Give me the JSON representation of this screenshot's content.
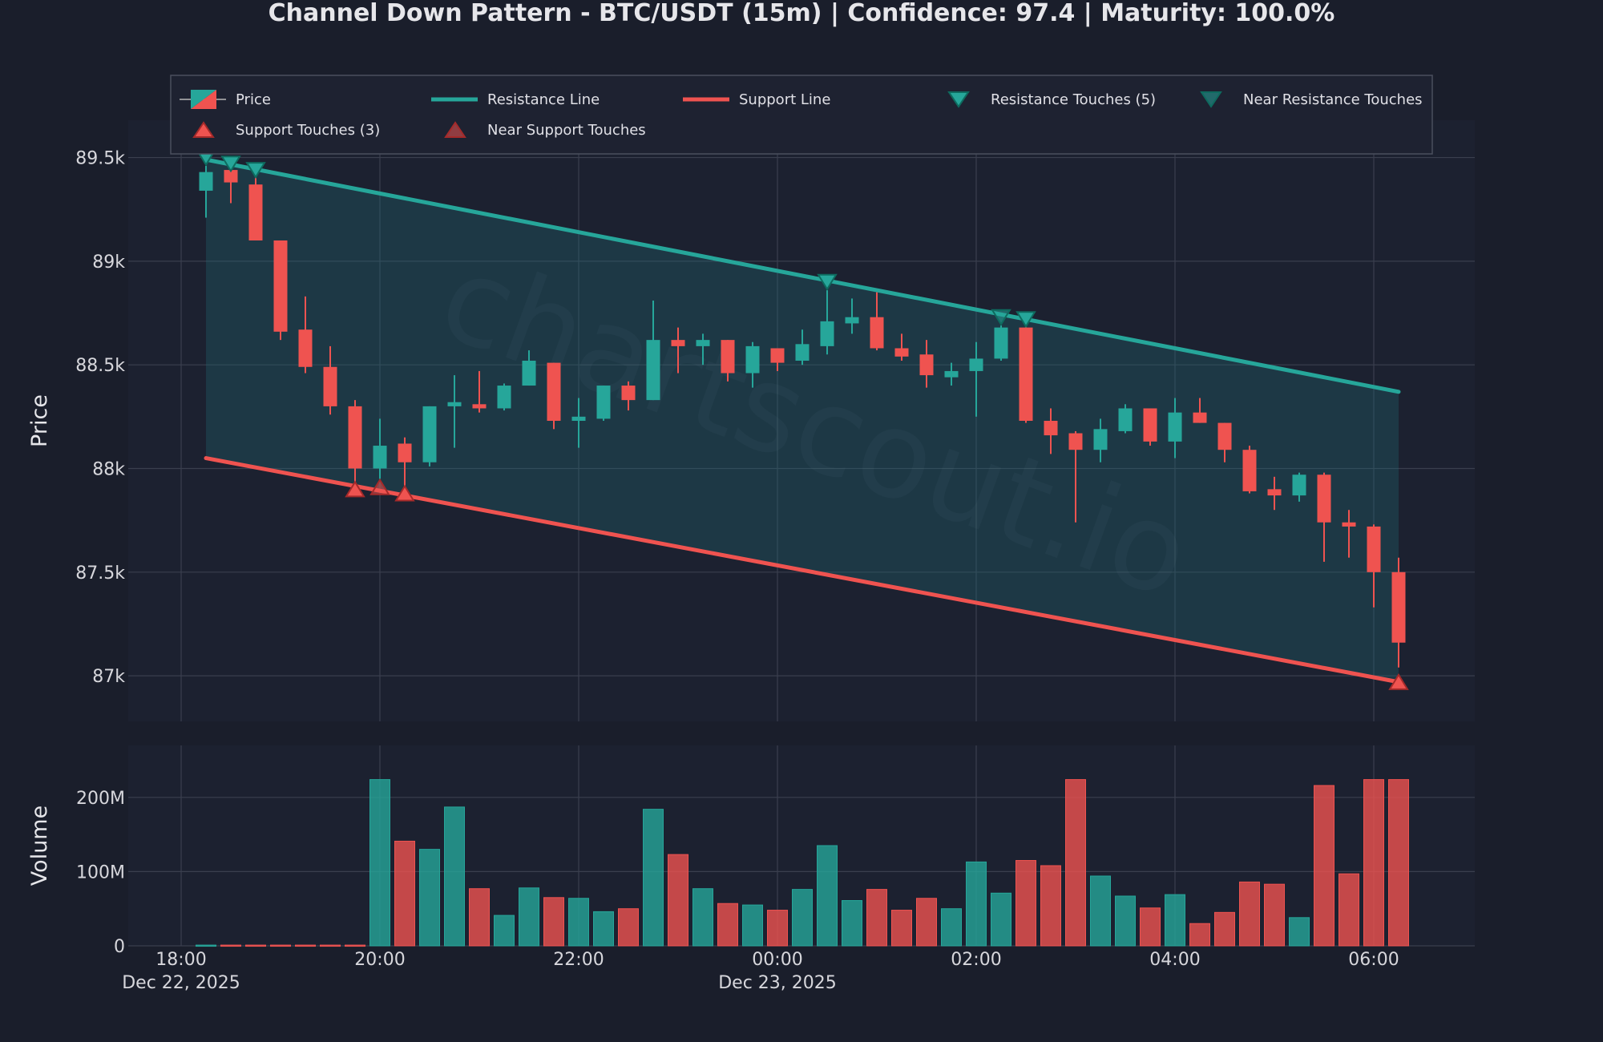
{
  "chart_data": {
    "type": "candlestick",
    "title": "Channel Down Pattern - BTC/USDT (15m) | Confidence: 97.4 | Maturity: 100.0%",
    "watermark": "chartscout.io",
    "price_axis": {
      "label": "Price",
      "ylim": [
        86780,
        89680
      ],
      "ticks": [
        {
          "value": 87000,
          "label": "87k"
        },
        {
          "value": 87500,
          "label": "87.5k"
        },
        {
          "value": 88000,
          "label": "88k"
        },
        {
          "value": 88500,
          "label": "88.5k"
        },
        {
          "value": 89000,
          "label": "89k"
        },
        {
          "value": 89500,
          "label": "89.5k"
        }
      ]
    },
    "volume_axis": {
      "label": "Volume",
      "ylim": [
        0,
        270000000
      ],
      "ticks": [
        {
          "value": 0,
          "label": "0"
        },
        {
          "value": 100000000,
          "label": "100M"
        },
        {
          "value": 200000000,
          "label": "200M"
        }
      ]
    },
    "x_axis": {
      "ticks": [
        {
          "slot": -1,
          "label": "18:00",
          "sublabel": "Dec 22, 2025"
        },
        {
          "slot": 7,
          "label": "20:00",
          "sublabel": ""
        },
        {
          "slot": 15,
          "label": "22:00",
          "sublabel": ""
        },
        {
          "slot": 23,
          "label": "00:00",
          "sublabel": "Dec 23, 2025"
        },
        {
          "slot": 31,
          "label": "02:00",
          "sublabel": ""
        },
        {
          "slot": 39,
          "label": "04:00",
          "sublabel": ""
        },
        {
          "slot": 47,
          "label": "06:00",
          "sublabel": ""
        }
      ]
    },
    "legend": {
      "placement": "top",
      "items": [
        {
          "label": "Price",
          "kind": "price"
        },
        {
          "label": "Resistance Line",
          "kind": "resistance_line"
        },
        {
          "label": "Support Line",
          "kind": "support_line"
        },
        {
          "label": "Resistance Touches (5)",
          "kind": "res_touch"
        },
        {
          "label": "Near Resistance Touches",
          "kind": "near_res"
        },
        {
          "label": "Support Touches (3)",
          "kind": "sup_touch"
        },
        {
          "label": "Near Support Touches",
          "kind": "near_sup"
        }
      ]
    },
    "colors": {
      "up": "#26a69a",
      "down": "#ef5350",
      "up_volume": "#26a69a",
      "down_volume": "#ef5350",
      "resistance": "#26a69a",
      "support": "#ef5350",
      "channel_fill": "#1e6b72",
      "background": "#1a1e2b",
      "grid": "#3a3f4e"
    },
    "resistance_line": {
      "start": {
        "slot": 0,
        "price": 89490
      },
      "end": {
        "slot": 48,
        "price": 88370
      }
    },
    "support_line": {
      "start": {
        "slot": 0,
        "price": 88050
      },
      "end": {
        "slot": 48,
        "price": 86970
      }
    },
    "candles": [
      {
        "o": 89340,
        "h": 89460,
        "l": 89210,
        "c": 89430,
        "v": 1000000
      },
      {
        "o": 89440,
        "h": 89460,
        "l": 89280,
        "c": 89380,
        "v": 1000000
      },
      {
        "o": 89370,
        "h": 89450,
        "l": 89100,
        "c": 89100,
        "v": 1000000
      },
      {
        "o": 89100,
        "h": 89100,
        "l": 88620,
        "c": 88660,
        "v": 1000000
      },
      {
        "o": 88670,
        "h": 88830,
        "l": 88460,
        "c": 88490,
        "v": 1000000
      },
      {
        "o": 88490,
        "h": 88590,
        "l": 88260,
        "c": 88300,
        "v": 1000000
      },
      {
        "o": 88300,
        "h": 88330,
        "l": 87920,
        "c": 88000,
        "v": 1000000
      },
      {
        "o": 88000,
        "h": 88240,
        "l": 87950,
        "c": 88110,
        "v": 224000000
      },
      {
        "o": 88120,
        "h": 88150,
        "l": 87900,
        "c": 88030,
        "v": 141000000
      },
      {
        "o": 88030,
        "h": 88300,
        "l": 88010,
        "c": 88300,
        "v": 130000000
      },
      {
        "o": 88300,
        "h": 88450,
        "l": 88100,
        "c": 88320,
        "v": 187000000
      },
      {
        "o": 88310,
        "h": 88470,
        "l": 88270,
        "c": 88290,
        "v": 77000000
      },
      {
        "o": 88290,
        "h": 88410,
        "l": 88280,
        "c": 88400,
        "v": 41000000
      },
      {
        "o": 88400,
        "h": 88570,
        "l": 88400,
        "c": 88520,
        "v": 78000000
      },
      {
        "o": 88510,
        "h": 88510,
        "l": 88190,
        "c": 88230,
        "v": 65000000
      },
      {
        "o": 88230,
        "h": 88340,
        "l": 88100,
        "c": 88250,
        "v": 64000000
      },
      {
        "o": 88240,
        "h": 88400,
        "l": 88230,
        "c": 88400,
        "v": 46000000
      },
      {
        "o": 88400,
        "h": 88420,
        "l": 88280,
        "c": 88330,
        "v": 50000000
      },
      {
        "o": 88330,
        "h": 88810,
        "l": 88330,
        "c": 88620,
        "v": 184000000
      },
      {
        "o": 88620,
        "h": 88680,
        "l": 88460,
        "c": 88590,
        "v": 123000000
      },
      {
        "o": 88590,
        "h": 88650,
        "l": 88500,
        "c": 88620,
        "v": 77000000
      },
      {
        "o": 88620,
        "h": 88620,
        "l": 88420,
        "c": 88460,
        "v": 57000000
      },
      {
        "o": 88460,
        "h": 88610,
        "l": 88390,
        "c": 88590,
        "v": 55000000
      },
      {
        "o": 88580,
        "h": 88580,
        "l": 88470,
        "c": 88510,
        "v": 48000000
      },
      {
        "o": 88520,
        "h": 88670,
        "l": 88500,
        "c": 88600,
        "v": 76000000
      },
      {
        "o": 88590,
        "h": 88860,
        "l": 88550,
        "c": 88710,
        "v": 135000000
      },
      {
        "o": 88700,
        "h": 88820,
        "l": 88650,
        "c": 88730,
        "v": 61000000
      },
      {
        "o": 88730,
        "h": 88850,
        "l": 88570,
        "c": 88580,
        "v": 76000000
      },
      {
        "o": 88580,
        "h": 88650,
        "l": 88520,
        "c": 88540,
        "v": 48000000
      },
      {
        "o": 88550,
        "h": 88620,
        "l": 88390,
        "c": 88450,
        "v": 64000000
      },
      {
        "o": 88440,
        "h": 88510,
        "l": 88400,
        "c": 88470,
        "v": 50000000
      },
      {
        "o": 88470,
        "h": 88610,
        "l": 88250,
        "c": 88530,
        "v": 113000000
      },
      {
        "o": 88530,
        "h": 88690,
        "l": 88520,
        "c": 88680,
        "v": 71000000
      },
      {
        "o": 88680,
        "h": 88700,
        "l": 88220,
        "c": 88230,
        "v": 115000000
      },
      {
        "o": 88230,
        "h": 88290,
        "l": 88070,
        "c": 88160,
        "v": 108000000
      },
      {
        "o": 88170,
        "h": 88180,
        "l": 87740,
        "c": 88090,
        "v": 224000000
      },
      {
        "o": 88090,
        "h": 88240,
        "l": 88030,
        "c": 88190,
        "v": 94000000
      },
      {
        "o": 88180,
        "h": 88310,
        "l": 88170,
        "c": 88290,
        "v": 67000000
      },
      {
        "o": 88290,
        "h": 88290,
        "l": 88110,
        "c": 88130,
        "v": 51000000
      },
      {
        "o": 88130,
        "h": 88340,
        "l": 88050,
        "c": 88270,
        "v": 69000000
      },
      {
        "o": 88270,
        "h": 88340,
        "l": 88220,
        "c": 88220,
        "v": 30000000
      },
      {
        "o": 88220,
        "h": 88220,
        "l": 88030,
        "c": 88090,
        "v": 45000000
      },
      {
        "o": 88090,
        "h": 88110,
        "l": 87880,
        "c": 87890,
        "v": 86000000
      },
      {
        "o": 87900,
        "h": 87960,
        "l": 87800,
        "c": 87870,
        "v": 83000000
      },
      {
        "o": 87870,
        "h": 87980,
        "l": 87840,
        "c": 87970,
        "v": 38000000
      },
      {
        "o": 87970,
        "h": 87980,
        "l": 87550,
        "c": 87740,
        "v": 216000000
      },
      {
        "o": 87740,
        "h": 87800,
        "l": 87570,
        "c": 87720,
        "v": 97000000
      },
      {
        "o": 87720,
        "h": 87730,
        "l": 87330,
        "c": 87500,
        "v": 224000000
      },
      {
        "o": 87500,
        "h": 87570,
        "l": 87040,
        "c": 87160,
        "v": 224000000
      }
    ],
    "resistance_touches": [
      {
        "slot": 0,
        "price": 89500
      },
      {
        "slot": 1,
        "price": 89470
      },
      {
        "slot": 2,
        "price": 89440
      },
      {
        "slot": 25,
        "price": 88900
      },
      {
        "slot": 33,
        "price": 88720
      }
    ],
    "near_resistance_touches": [
      {
        "slot": 32,
        "price": 88730
      }
    ],
    "support_touches": [
      {
        "slot": 6,
        "price": 87900
      },
      {
        "slot": 8,
        "price": 87880
      },
      {
        "slot": 48,
        "price": 86970
      }
    ],
    "near_support_touches": [
      {
        "slot": 7,
        "price": 87910
      }
    ]
  }
}
